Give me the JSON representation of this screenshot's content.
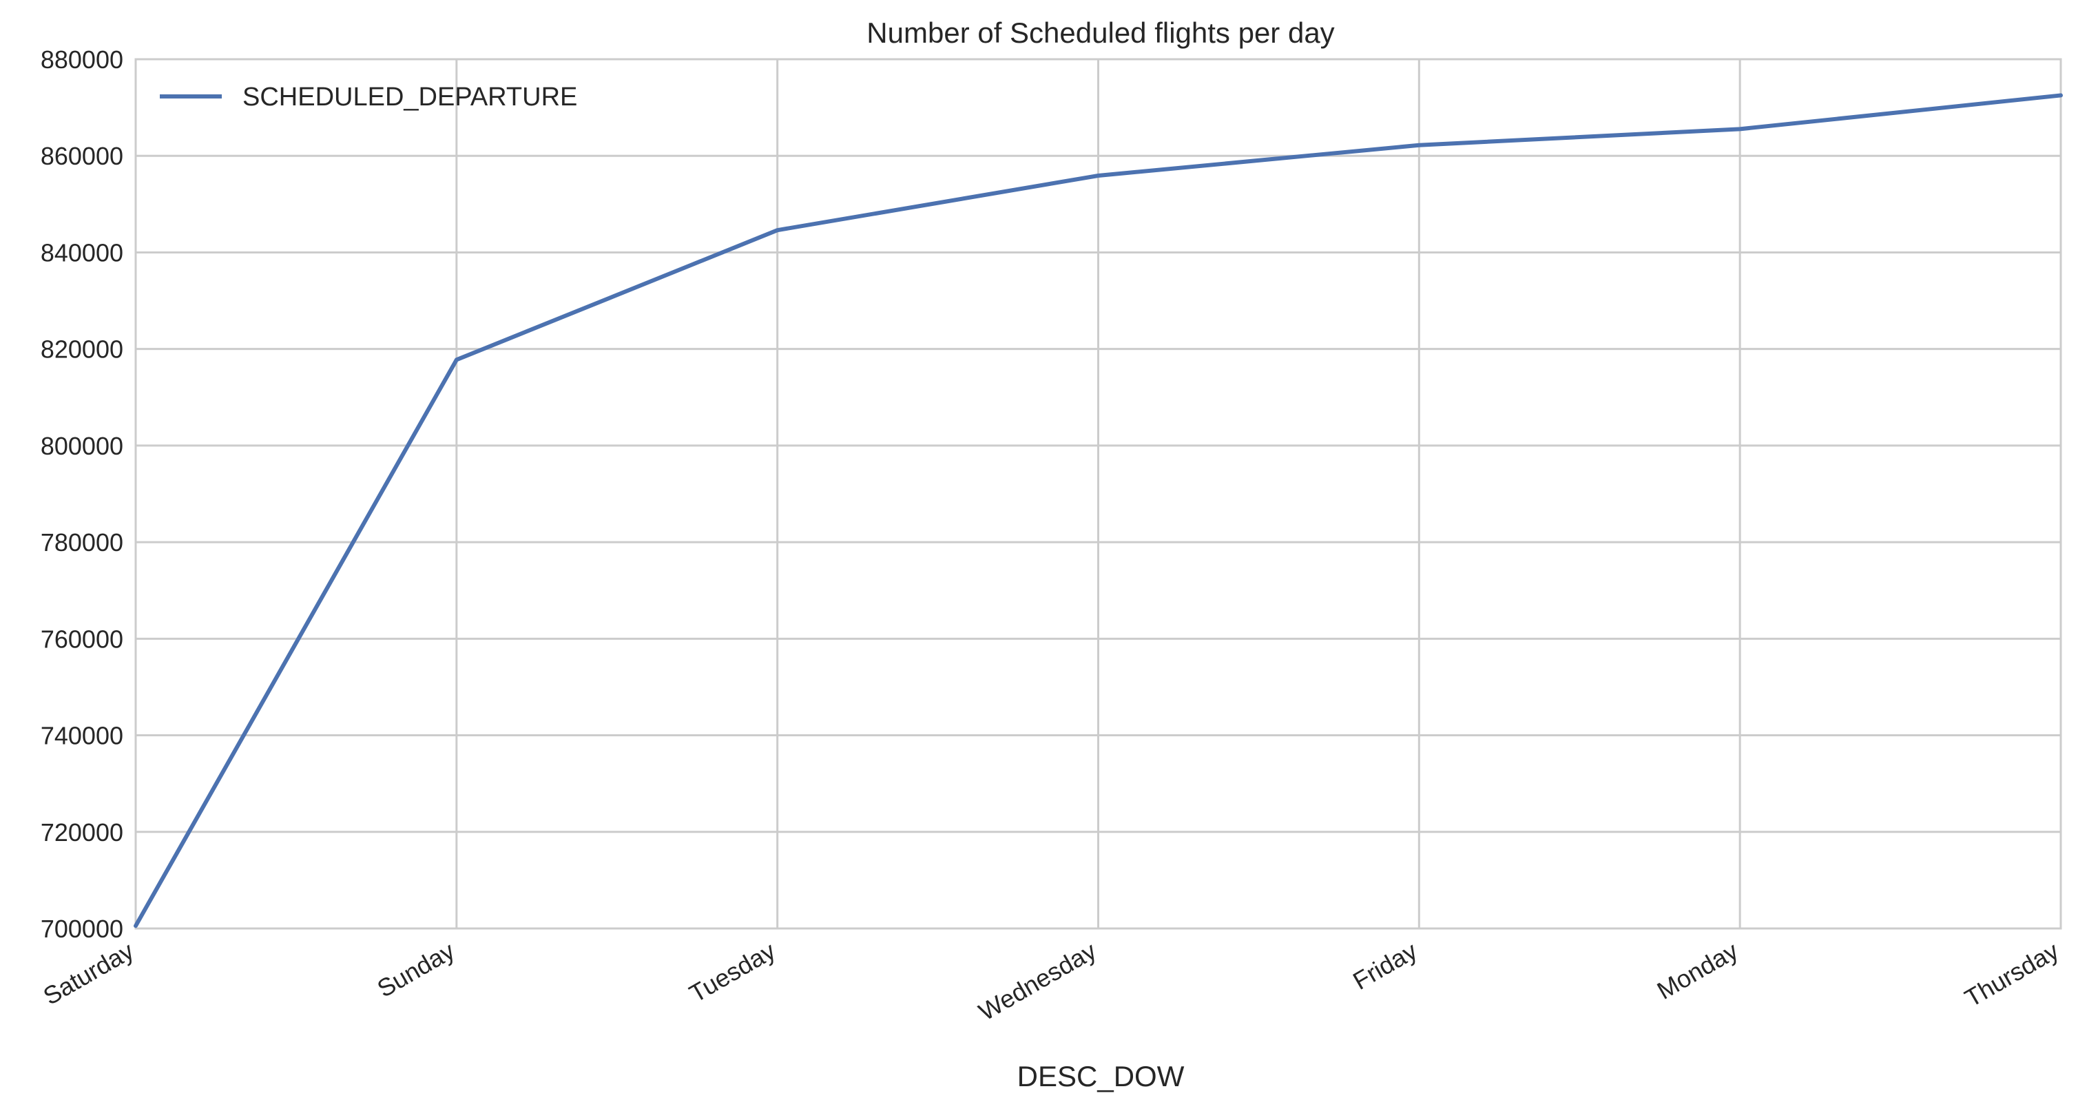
{
  "chart_data": {
    "type": "line",
    "title": "Number of Scheduled flights per day",
    "xlabel": "DESC_DOW",
    "ylabel": "",
    "categories": [
      "Saturday",
      "Sunday",
      "Tuesday",
      "Wednesday",
      "Friday",
      "Monday",
      "Thursday"
    ],
    "series": [
      {
        "name": "SCHEDULED_DEPARTURE",
        "color": "#4c72b0",
        "values": [
          700545,
          817764,
          844600,
          855897,
          862209,
          865543,
          872521
        ]
      }
    ],
    "ylim": [
      700000,
      880000
    ],
    "yticks": [
      700000,
      720000,
      740000,
      760000,
      780000,
      800000,
      820000,
      840000,
      860000,
      880000
    ],
    "grid": true,
    "legend": "top-left"
  }
}
